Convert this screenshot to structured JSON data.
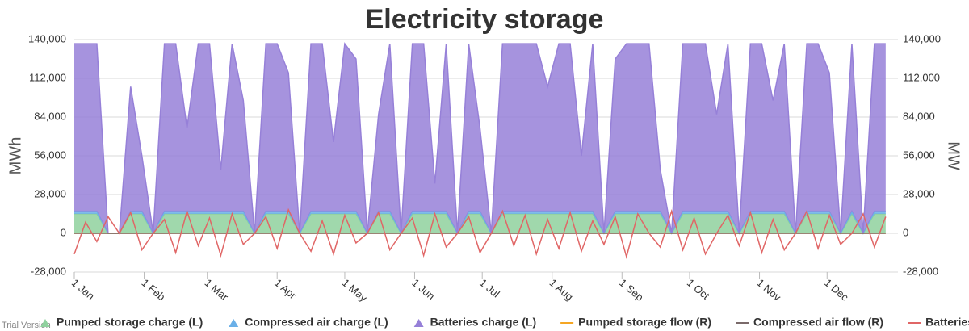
{
  "chart_data": {
    "type": "stacked-area-line",
    "title": "Electricity storage",
    "y_label": "MWh",
    "y2_label": "MW",
    "watermark": "Trial Version",
    "x": [
      0,
      5,
      10,
      15,
      20,
      25,
      30,
      35,
      40,
      45,
      50,
      55,
      60,
      65,
      70,
      75,
      80,
      85,
      90,
      95,
      100,
      105,
      110,
      115,
      120,
      125,
      130,
      135,
      140,
      145,
      150,
      155,
      160,
      165,
      170,
      175,
      180,
      185,
      190,
      195,
      200,
      205,
      210,
      215,
      220,
      225,
      230,
      235,
      240,
      245,
      250,
      255,
      260,
      265,
      270,
      275,
      280,
      285,
      290,
      295,
      300,
      305,
      310,
      315,
      320,
      325,
      330,
      335,
      340,
      345,
      350,
      355,
      360
    ],
    "xlim": [
      0,
      364
    ],
    "xticks": [
      {
        "value": 0,
        "label": "1 Jan"
      },
      {
        "value": 31,
        "label": "1 Feb"
      },
      {
        "value": 59,
        "label": "1 Mar"
      },
      {
        "value": 90,
        "label": "1 Apr"
      },
      {
        "value": 120,
        "label": "1 May"
      },
      {
        "value": 151,
        "label": "1 Jun"
      },
      {
        "value": 181,
        "label": "1 Jul"
      },
      {
        "value": 212,
        "label": "1 Aug"
      },
      {
        "value": 243,
        "label": "1 Sep"
      },
      {
        "value": 273,
        "label": "1 Oct"
      },
      {
        "value": 304,
        "label": "1 Nov"
      },
      {
        "value": 334,
        "label": "1 Dec"
      }
    ],
    "ylim": [
      -28000,
      140000
    ],
    "yticks": [
      {
        "value": -28000,
        "label": "-28,000"
      },
      0,
      {
        "value": 28000,
        "label": "28,000"
      },
      {
        "value": 56000,
        "label": "56,000"
      },
      {
        "value": 84000,
        "label": "84,000"
      },
      {
        "value": 112000,
        "label": "112,000"
      },
      {
        "value": 140000,
        "label": "140,000"
      }
    ],
    "y2lim": [
      -28000,
      140000
    ],
    "y2ticks": [
      {
        "value": -28000,
        "label": "-28,000"
      },
      0,
      {
        "value": 28000,
        "label": "28,000"
      },
      {
        "value": 56000,
        "label": "56,000"
      },
      {
        "value": 84000,
        "label": "84,000"
      },
      {
        "value": 112000,
        "label": "112,000"
      },
      {
        "value": 140000,
        "label": "140,000"
      }
    ],
    "grid": true,
    "series": [
      {
        "name": "Pumped storage charge (L)",
        "kind": "area",
        "color": "#8fd19e",
        "values": [
          14000,
          14000,
          14000,
          0,
          0,
          14000,
          14000,
          0,
          14000,
          14000,
          14000,
          14000,
          14000,
          14000,
          14000,
          14000,
          0,
          14000,
          14000,
          14000,
          0,
          14000,
          14000,
          14000,
          14000,
          14000,
          0,
          14000,
          14000,
          0,
          14000,
          14000,
          14000,
          14000,
          0,
          14000,
          14000,
          0,
          14000,
          14000,
          14000,
          14000,
          14000,
          14000,
          14000,
          14000,
          14000,
          0,
          14000,
          14000,
          14000,
          14000,
          14000,
          0,
          14000,
          14000,
          14000,
          14000,
          14000,
          0,
          14000,
          14000,
          14000,
          14000,
          0,
          14000,
          14000,
          14000,
          0,
          14000,
          0,
          14000,
          14000
        ]
      },
      {
        "name": "Compressed air charge (L)",
        "kind": "area",
        "color": "#6ab0e8",
        "values": [
          2000,
          2000,
          2000,
          0,
          0,
          2000,
          2000,
          0,
          2000,
          2000,
          2000,
          2000,
          2000,
          2000,
          2000,
          2000,
          0,
          2000,
          2000,
          2000,
          0,
          2000,
          2000,
          2000,
          2000,
          2000,
          0,
          2000,
          2000,
          0,
          2000,
          2000,
          2000,
          2000,
          0,
          2000,
          2000,
          0,
          2000,
          2000,
          2000,
          2000,
          2000,
          2000,
          2000,
          2000,
          2000,
          0,
          2000,
          2000,
          2000,
          2000,
          2000,
          0,
          2000,
          2000,
          2000,
          2000,
          2000,
          0,
          2000,
          2000,
          2000,
          2000,
          0,
          2000,
          2000,
          2000,
          0,
          2000,
          0,
          2000,
          2000
        ]
      },
      {
        "name": "Batteries charge (L)",
        "kind": "area",
        "color": "#9680d8",
        "values": [
          121000,
          121000,
          121000,
          0,
          0,
          90000,
          40000,
          0,
          121000,
          121000,
          60000,
          121000,
          121000,
          30000,
          121000,
          80000,
          0,
          121000,
          121000,
          100000,
          0,
          121000,
          121000,
          50000,
          121000,
          110000,
          0,
          70000,
          121000,
          0,
          121000,
          121000,
          20000,
          121000,
          0,
          121000,
          60000,
          0,
          121000,
          121000,
          121000,
          121000,
          90000,
          121000,
          121000,
          40000,
          121000,
          0,
          110000,
          121000,
          121000,
          121000,
          30000,
          0,
          121000,
          121000,
          121000,
          70000,
          121000,
          0,
          121000,
          121000,
          80000,
          121000,
          0,
          121000,
          121000,
          100000,
          0,
          121000,
          0,
          121000,
          121000
        ]
      },
      {
        "name": "Pumped storage flow (R)",
        "kind": "line",
        "axis": "y2",
        "color": "#f5a623",
        "values": [
          0,
          0,
          0,
          0,
          0,
          0,
          0,
          0,
          0,
          0,
          0,
          0,
          0,
          0,
          0,
          0,
          0,
          0,
          0,
          0,
          0,
          0,
          0,
          0,
          0,
          0,
          0,
          0,
          0,
          0,
          0,
          0,
          0,
          0,
          0,
          0,
          0,
          0,
          0,
          0,
          0,
          0,
          0,
          0,
          0,
          0,
          0,
          0,
          0,
          0,
          0,
          0,
          0,
          0,
          0,
          0,
          0,
          0,
          0,
          0,
          0,
          0,
          0,
          0,
          0,
          0,
          0,
          0,
          0,
          0,
          0,
          0,
          0
        ]
      },
      {
        "name": "Compressed air flow (R)",
        "kind": "line",
        "axis": "y2",
        "color": "#7a6a6a",
        "values": [
          0,
          0,
          0,
          0,
          0,
          0,
          0,
          0,
          0,
          0,
          0,
          0,
          0,
          0,
          0,
          0,
          0,
          0,
          0,
          0,
          0,
          0,
          0,
          0,
          0,
          0,
          0,
          0,
          0,
          0,
          0,
          0,
          0,
          0,
          0,
          0,
          0,
          0,
          0,
          0,
          0,
          0,
          0,
          0,
          0,
          0,
          0,
          0,
          0,
          0,
          0,
          0,
          0,
          0,
          0,
          0,
          0,
          0,
          0,
          0,
          0,
          0,
          0,
          0,
          0,
          0,
          0,
          0,
          0,
          0,
          0,
          0,
          0
        ]
      },
      {
        "name": "Batteries flow (R)",
        "kind": "line",
        "axis": "y2",
        "color": "#e06666",
        "values": [
          -15000,
          8000,
          -6000,
          12000,
          0,
          15000,
          -12000,
          0,
          10000,
          -14000,
          16000,
          -9000,
          11000,
          -16000,
          14000,
          -8000,
          0,
          12000,
          -11000,
          17000,
          0,
          -13000,
          9000,
          -15000,
          13000,
          -7000,
          0,
          15000,
          -12000,
          0,
          11000,
          -16000,
          14000,
          -10000,
          0,
          12000,
          -14000,
          0,
          16000,
          -9000,
          13000,
          -15000,
          10000,
          -11000,
          15000,
          -13000,
          9000,
          -8000,
          12000,
          -17000,
          14000,
          0,
          -10000,
          16000,
          -12000,
          11000,
          -15000,
          0,
          13000,
          -9000,
          15000,
          -14000,
          10000,
          -12000,
          0,
          16000,
          -11000,
          13000,
          -8000,
          0,
          14000,
          -10000,
          12000
        ]
      }
    ]
  }
}
